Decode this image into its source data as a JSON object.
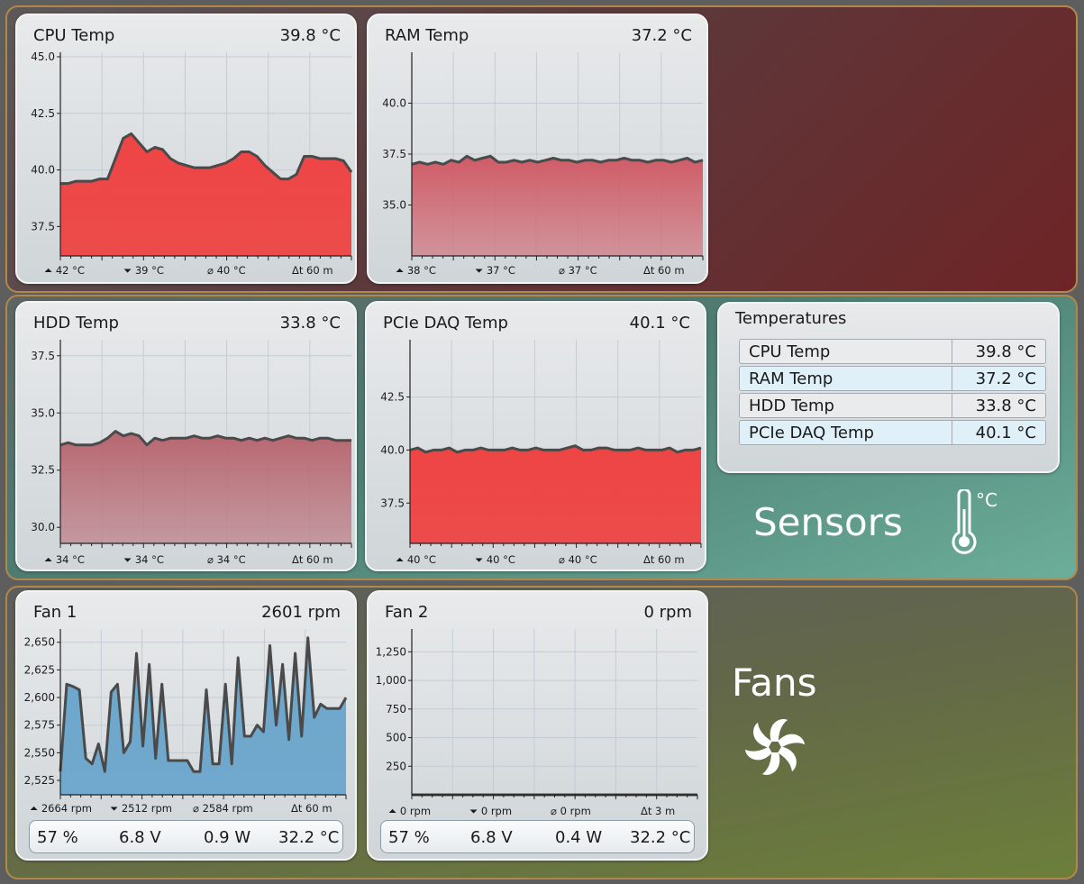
{
  "sections": {
    "sensors_label": "Sensors",
    "fans_label": "Fans",
    "celsius_unit": "°C"
  },
  "cpu": {
    "title": "CPU Temp",
    "value": "39.8 °C",
    "stats": {
      "max": "42 °C",
      "min": "39 °C",
      "avg": "40 °C",
      "span": "60 m"
    },
    "y_ticks": [
      "45.0",
      "42.5",
      "40.0",
      "37.5"
    ]
  },
  "ram": {
    "title": "RAM Temp",
    "value": "37.2 °C",
    "stats": {
      "max": "38 °C",
      "min": "37 °C",
      "avg": "37 °C",
      "span": "60 m"
    },
    "y_ticks": [
      "40.0",
      "37.5",
      "35.0"
    ]
  },
  "hdd": {
    "title": "HDD Temp",
    "value": "33.8 °C",
    "stats": {
      "max": "34 °C",
      "min": "34 °C",
      "avg": "34 °C",
      "span": "60 m"
    },
    "y_ticks": [
      "37.5",
      "35.0",
      "32.5",
      "30.0"
    ]
  },
  "pcie": {
    "title": "PCIe DAQ Temp",
    "value": "40.1 °C",
    "stats": {
      "max": "40 °C",
      "min": "40 °C",
      "avg": "40 °C",
      "span": "60 m"
    },
    "y_ticks": [
      "42.5",
      "40.0",
      "37.5"
    ]
  },
  "temperatures_table": {
    "title": "Temperatures",
    "rows": [
      {
        "name": "CPU Temp",
        "value": "39.8 °C"
      },
      {
        "name": "RAM Temp",
        "value": "37.2 °C"
      },
      {
        "name": "HDD Temp",
        "value": "33.8 °C"
      },
      {
        "name": "PCIe DAQ Temp",
        "value": "40.1 °C"
      }
    ]
  },
  "fan1": {
    "title": "Fan 1",
    "value": "2601 rpm",
    "stats": {
      "max": "2664 rpm",
      "min": "2512 rpm",
      "avg": "2584 rpm",
      "span": "60 m"
    },
    "y_ticks": [
      "2,650",
      "2,625",
      "2,600",
      "2,575",
      "2,550",
      "2,525"
    ],
    "electrical": {
      "duty": "57 %",
      "voltage": "6.8 V",
      "power": "0.9 W",
      "temp": "32.2 °C"
    }
  },
  "fan2": {
    "title": "Fan 2",
    "value": "0 rpm",
    "stats": {
      "max": "0 rpm",
      "min": "0 rpm",
      "avg": "0 rpm",
      "span": "3 m"
    },
    "y_ticks": [
      "1,250",
      "1,000",
      "750",
      "500",
      "250"
    ],
    "electrical": {
      "duty": "57 %",
      "voltage": "6.8 V",
      "power": "0.4 W",
      "temp": "32.2 °C"
    }
  },
  "chart_data": [
    {
      "type": "area",
      "title": "CPU Temp",
      "ylim": [
        36.2,
        45.2
      ],
      "grid": true,
      "fill": "#ee4444",
      "y_ticks": [
        45.0,
        42.5,
        40.0,
        37.5
      ],
      "values": [
        39.4,
        39.4,
        39.5,
        39.5,
        39.5,
        39.6,
        39.6,
        40.5,
        41.4,
        41.6,
        41.2,
        40.8,
        41.0,
        40.9,
        40.5,
        40.3,
        40.2,
        40.1,
        40.1,
        40.1,
        40.2,
        40.3,
        40.5,
        40.8,
        40.8,
        40.6,
        40.2,
        39.9,
        39.6,
        39.6,
        39.8,
        40.6,
        40.6,
        40.5,
        40.5,
        40.5,
        40.4,
        39.9
      ]
    },
    {
      "type": "area",
      "title": "RAM Temp",
      "ylim": [
        32.5,
        42.5
      ],
      "grid": true,
      "fill": "#cf5b66",
      "y_ticks": [
        40.0,
        37.5,
        35.0
      ],
      "values": [
        37.0,
        37.1,
        37.0,
        37.1,
        37.0,
        37.2,
        37.1,
        37.4,
        37.2,
        37.3,
        37.4,
        37.1,
        37.1,
        37.2,
        37.1,
        37.2,
        37.1,
        37.2,
        37.3,
        37.2,
        37.2,
        37.1,
        37.2,
        37.2,
        37.1,
        37.2,
        37.2,
        37.3,
        37.2,
        37.2,
        37.1,
        37.2,
        37.2,
        37.1,
        37.2,
        37.3,
        37.1,
        37.2
      ]
    },
    {
      "type": "area",
      "title": "HDD Temp",
      "ylim": [
        29.3,
        38.2
      ],
      "grid": true,
      "fill": "#b7666f",
      "y_ticks": [
        37.5,
        35.0,
        32.5,
        30.0
      ],
      "values": [
        33.6,
        33.7,
        33.6,
        33.6,
        33.6,
        33.7,
        33.9,
        34.2,
        34.0,
        34.1,
        34.0,
        33.6,
        33.9,
        33.8,
        33.9,
        33.9,
        33.9,
        34.0,
        33.9,
        33.9,
        34.0,
        33.9,
        33.9,
        33.8,
        33.9,
        33.8,
        33.9,
        33.8,
        33.9,
        34.0,
        33.9,
        33.9,
        33.8,
        33.9,
        33.9,
        33.8,
        33.8,
        33.8
      ]
    },
    {
      "type": "area",
      "title": "PCIe DAQ Temp",
      "ylim": [
        35.6,
        45.2
      ],
      "grid": true,
      "fill": "#ee4444",
      "y_ticks": [
        42.5,
        40.0,
        37.5
      ],
      "values": [
        40.0,
        40.1,
        39.9,
        40.0,
        40.0,
        40.1,
        39.9,
        40.0,
        40.0,
        40.1,
        40.0,
        40.0,
        40.0,
        40.1,
        40.0,
        40.0,
        40.1,
        40.0,
        40.0,
        40.0,
        40.1,
        40.2,
        40.0,
        40.0,
        40.1,
        40.1,
        40.0,
        40.0,
        40.0,
        40.1,
        40.0,
        40.0,
        40.0,
        40.1,
        39.9,
        40.0,
        40.0,
        40.1
      ]
    },
    {
      "type": "area",
      "title": "Fan 1",
      "ylim": [
        2512,
        2662
      ],
      "grid": true,
      "fill": "#6ca6cc",
      "y_ticks": [
        2650,
        2625,
        2600,
        2575,
        2550,
        2525
      ],
      "values": [
        2533,
        2612,
        2610,
        2607,
        2545,
        2540,
        2558,
        2533,
        2605,
        2612,
        2550,
        2560,
        2640,
        2556,
        2630,
        2545,
        2612,
        2543,
        2543,
        2543,
        2543,
        2533,
        2533,
        2607,
        2540,
        2540,
        2612,
        2540,
        2636,
        2565,
        2565,
        2575,
        2569,
        2647,
        2575,
        2630,
        2562,
        2640,
        2565,
        2654,
        2582,
        2594,
        2590,
        2590,
        2590,
        2600
      ]
    },
    {
      "type": "line",
      "title": "Fan 2",
      "ylim": [
        0,
        1450
      ],
      "grid": true,
      "y_ticks": [
        1250,
        1000,
        750,
        500,
        250
      ],
      "values": [
        0,
        0,
        0,
        0,
        0,
        0,
        0,
        0,
        0,
        0
      ]
    }
  ]
}
